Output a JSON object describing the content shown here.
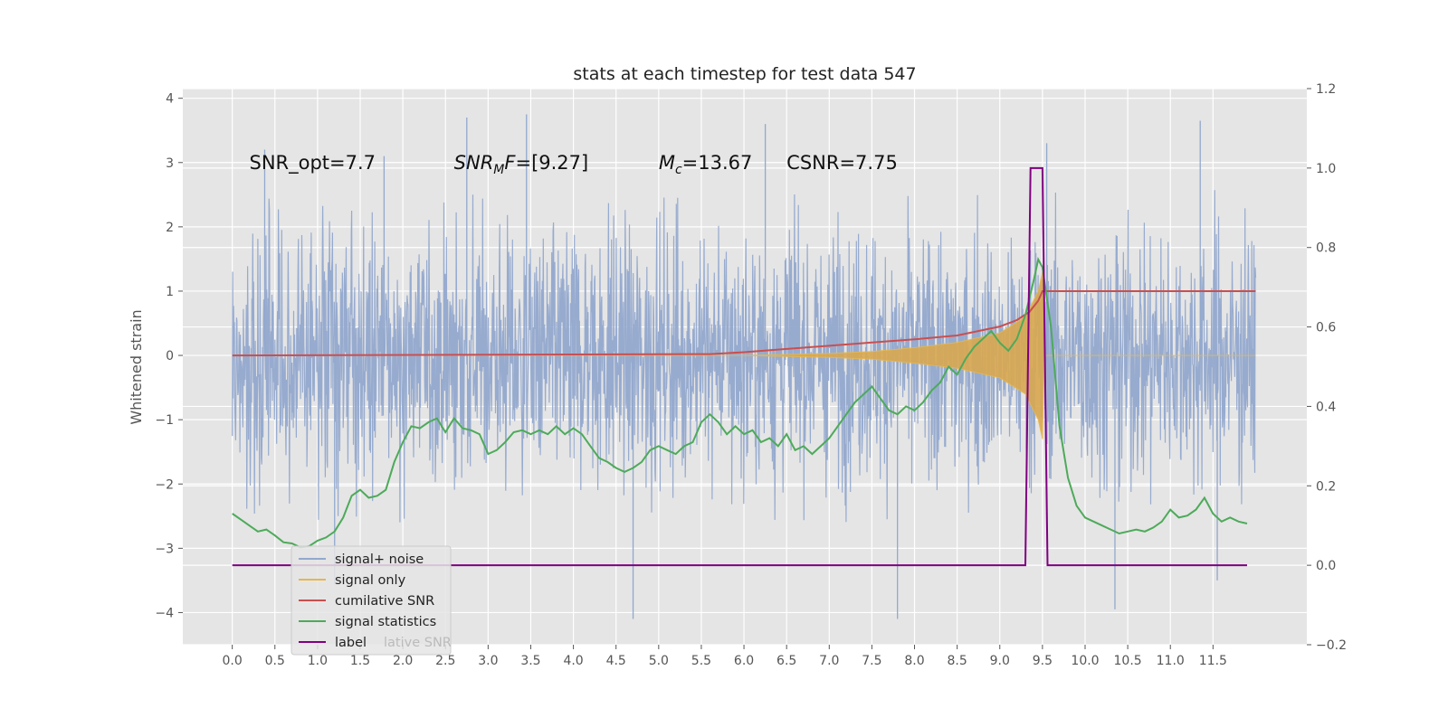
{
  "chart_data": {
    "type": "line",
    "title": "stats at each timestep for test data 547",
    "ylabel": "Whitened strain",
    "y2label": "",
    "xlim": [
      -0.58,
      12.6
    ],
    "ylim": [
      -4.5,
      4.15
    ],
    "y2lim": [
      -0.2,
      1.2
    ],
    "grid": true,
    "legend_position": "lower-left",
    "background": "#e5e5e5",
    "x_ticks": [
      "0.0",
      "0.5",
      "1.0",
      "1.5",
      "2.0",
      "2.5",
      "3.0",
      "3.5",
      "4.0",
      "4.5",
      "5.0",
      "5.5",
      "6.0",
      "6.5",
      "7.0",
      "7.5",
      "8.0",
      "8.5",
      "9.0",
      "9.5",
      "10.0",
      "10.5",
      "11.0",
      "11.5"
    ],
    "y_ticks": [
      4,
      3,
      2,
      1,
      0,
      -1,
      -2,
      -3,
      -4
    ],
    "y_tick_labels": [
      "4",
      "3",
      "2",
      "1",
      "0",
      "−1",
      "−2",
      "−3",
      "−4"
    ],
    "y2_ticks": [
      1.2,
      1.0,
      0.8,
      0.6,
      0.4,
      0.2,
      0.0,
      -0.2
    ],
    "y2_tick_labels": [
      "1.2",
      "1.0",
      "0.8",
      "0.6",
      "0.4",
      "0.2",
      "0.0",
      "−0.2"
    ],
    "annotations": [
      {
        "text": "SNR_opt=7.7",
        "x": 0.2,
        "y": 3.0
      },
      {
        "text": "SNR_MF=[9.27]",
        "x": 2.6,
        "y": 3.0
      },
      {
        "text": "M_c=13.67",
        "x": 5.0,
        "y": 3.0
      },
      {
        "text": "CSNR=7.75",
        "x": 6.5,
        "y": 3.0
      }
    ],
    "series": [
      {
        "name": "signal+ noise",
        "axis": "left",
        "color": "#92a8cd",
        "description": "dense noisy strain, envelope roughly -2.4..2.6 with spikes to about +/-4",
        "x_range": [
          0.0,
          12.0
        ],
        "typical_envelope": [
          -2.3,
          2.3
        ],
        "peaks": [
          {
            "x": 0.38,
            "y": 3.2
          },
          {
            "x": 1.78,
            "y": 3.1
          },
          {
            "x": 2.75,
            "y": 3.7
          },
          {
            "x": 3.45,
            "y": 3.75
          },
          {
            "x": 6.25,
            "y": 3.6
          },
          {
            "x": 9.55,
            "y": 3.3
          },
          {
            "x": 11.35,
            "y": 3.65
          },
          {
            "x": 4.7,
            "y": -4.1
          },
          {
            "x": 7.8,
            "y": -4.1
          },
          {
            "x": 10.35,
            "y": -3.95
          },
          {
            "x": 1.2,
            "y": -3.55
          },
          {
            "x": 11.55,
            "y": -3.5
          }
        ]
      },
      {
        "name": "signal only",
        "axis": "left",
        "color": "#e7b74b",
        "description": "chirp signal, amplitude grows from 0 near t=6 to about 1.4 at merger t=9.5, then zero",
        "points": [
          [
            0.0,
            0.0
          ],
          [
            6.0,
            0.0
          ],
          [
            7.0,
            0.03
          ],
          [
            7.5,
            0.06
          ],
          [
            8.0,
            0.12
          ],
          [
            8.5,
            0.2
          ],
          [
            9.0,
            0.35
          ],
          [
            9.3,
            0.6
          ],
          [
            9.45,
            1.0
          ],
          [
            9.5,
            1.3
          ],
          [
            9.52,
            0.0
          ],
          [
            12.0,
            0.0
          ]
        ]
      },
      {
        "name": "cumilative SNR",
        "axis": "left",
        "color": "#c94f4f",
        "points": [
          [
            0.0,
            0.0
          ],
          [
            5.6,
            0.02
          ],
          [
            6.0,
            0.05
          ],
          [
            6.5,
            0.1
          ],
          [
            7.0,
            0.15
          ],
          [
            7.5,
            0.2
          ],
          [
            8.0,
            0.25
          ],
          [
            8.5,
            0.31
          ],
          [
            9.0,
            0.45
          ],
          [
            9.2,
            0.55
          ],
          [
            9.35,
            0.68
          ],
          [
            9.45,
            0.85
          ],
          [
            9.5,
            1.0
          ],
          [
            12.0,
            1.0
          ]
        ]
      },
      {
        "name": "signal statistics",
        "axis": "right",
        "color": "#4daa5a",
        "points": [
          [
            0.0,
            0.13
          ],
          [
            0.1,
            0.115
          ],
          [
            0.2,
            0.1
          ],
          [
            0.3,
            0.085
          ],
          [
            0.4,
            0.09
          ],
          [
            0.5,
            0.075
          ],
          [
            0.6,
            0.058
          ],
          [
            0.7,
            0.055
          ],
          [
            0.8,
            0.045
          ],
          [
            0.9,
            0.048
          ],
          [
            1.0,
            0.062
          ],
          [
            1.1,
            0.07
          ],
          [
            1.2,
            0.085
          ],
          [
            1.3,
            0.12
          ],
          [
            1.4,
            0.175
          ],
          [
            1.5,
            0.19
          ],
          [
            1.6,
            0.17
          ],
          [
            1.7,
            0.175
          ],
          [
            1.8,
            0.19
          ],
          [
            1.9,
            0.26
          ],
          [
            2.0,
            0.31
          ],
          [
            2.1,
            0.35
          ],
          [
            2.2,
            0.345
          ],
          [
            2.3,
            0.36
          ],
          [
            2.4,
            0.37
          ],
          [
            2.5,
            0.335
          ],
          [
            2.6,
            0.37
          ],
          [
            2.7,
            0.345
          ],
          [
            2.8,
            0.34
          ],
          [
            2.9,
            0.33
          ],
          [
            3.0,
            0.28
          ],
          [
            3.1,
            0.29
          ],
          [
            3.2,
            0.31
          ],
          [
            3.3,
            0.335
          ],
          [
            3.4,
            0.34
          ],
          [
            3.5,
            0.33
          ],
          [
            3.6,
            0.34
          ],
          [
            3.7,
            0.33
          ],
          [
            3.8,
            0.35
          ],
          [
            3.9,
            0.33
          ],
          [
            4.0,
            0.345
          ],
          [
            4.1,
            0.33
          ],
          [
            4.2,
            0.3
          ],
          [
            4.3,
            0.27
          ],
          [
            4.4,
            0.26
          ],
          [
            4.5,
            0.245
          ],
          [
            4.6,
            0.235
          ],
          [
            4.7,
            0.245
          ],
          [
            4.8,
            0.26
          ],
          [
            4.9,
            0.29
          ],
          [
            5.0,
            0.3
          ],
          [
            5.1,
            0.29
          ],
          [
            5.2,
            0.28
          ],
          [
            5.3,
            0.3
          ],
          [
            5.4,
            0.31
          ],
          [
            5.5,
            0.36
          ],
          [
            5.6,
            0.38
          ],
          [
            5.7,
            0.36
          ],
          [
            5.8,
            0.33
          ],
          [
            5.9,
            0.35
          ],
          [
            6.0,
            0.33
          ],
          [
            6.1,
            0.34
          ],
          [
            6.2,
            0.31
          ],
          [
            6.3,
            0.32
          ],
          [
            6.4,
            0.3
          ],
          [
            6.5,
            0.33
          ],
          [
            6.6,
            0.29
          ],
          [
            6.7,
            0.3
          ],
          [
            6.8,
            0.28
          ],
          [
            6.9,
            0.3
          ],
          [
            7.0,
            0.32
          ],
          [
            7.1,
            0.35
          ],
          [
            7.2,
            0.38
          ],
          [
            7.3,
            0.41
          ],
          [
            7.4,
            0.43
          ],
          [
            7.5,
            0.45
          ],
          [
            7.6,
            0.42
          ],
          [
            7.7,
            0.39
          ],
          [
            7.8,
            0.38
          ],
          [
            7.9,
            0.4
          ],
          [
            8.0,
            0.39
          ],
          [
            8.1,
            0.41
          ],
          [
            8.2,
            0.44
          ],
          [
            8.3,
            0.46
          ],
          [
            8.4,
            0.5
          ],
          [
            8.5,
            0.48
          ],
          [
            8.6,
            0.52
          ],
          [
            8.7,
            0.55
          ],
          [
            8.8,
            0.57
          ],
          [
            8.9,
            0.59
          ],
          [
            9.0,
            0.56
          ],
          [
            9.1,
            0.54
          ],
          [
            9.2,
            0.57
          ],
          [
            9.3,
            0.63
          ],
          [
            9.4,
            0.72
          ],
          [
            9.45,
            0.77
          ],
          [
            9.5,
            0.75
          ],
          [
            9.6,
            0.6
          ],
          [
            9.7,
            0.35
          ],
          [
            9.8,
            0.22
          ],
          [
            9.9,
            0.15
          ],
          [
            10.0,
            0.12
          ],
          [
            10.1,
            0.11
          ],
          [
            10.2,
            0.1
          ],
          [
            10.3,
            0.09
          ],
          [
            10.4,
            0.08
          ],
          [
            10.5,
            0.085
          ],
          [
            10.6,
            0.09
          ],
          [
            10.7,
            0.085
          ],
          [
            10.8,
            0.095
          ],
          [
            10.9,
            0.11
          ],
          [
            11.0,
            0.14
          ],
          [
            11.1,
            0.12
          ],
          [
            11.2,
            0.125
          ],
          [
            11.3,
            0.14
          ],
          [
            11.4,
            0.17
          ],
          [
            11.5,
            0.13
          ],
          [
            11.6,
            0.11
          ],
          [
            11.7,
            0.12
          ],
          [
            11.8,
            0.11
          ],
          [
            11.9,
            0.105
          ]
        ]
      },
      {
        "name": "label",
        "axis": "right",
        "color": "#800080",
        "points": [
          [
            0.0,
            0.0
          ],
          [
            9.3,
            0.0
          ],
          [
            9.36,
            1.0
          ],
          [
            9.5,
            1.0
          ],
          [
            9.56,
            0.0
          ],
          [
            11.9,
            0.0
          ]
        ]
      }
    ],
    "legend_overlay_text": "lative SNR"
  }
}
